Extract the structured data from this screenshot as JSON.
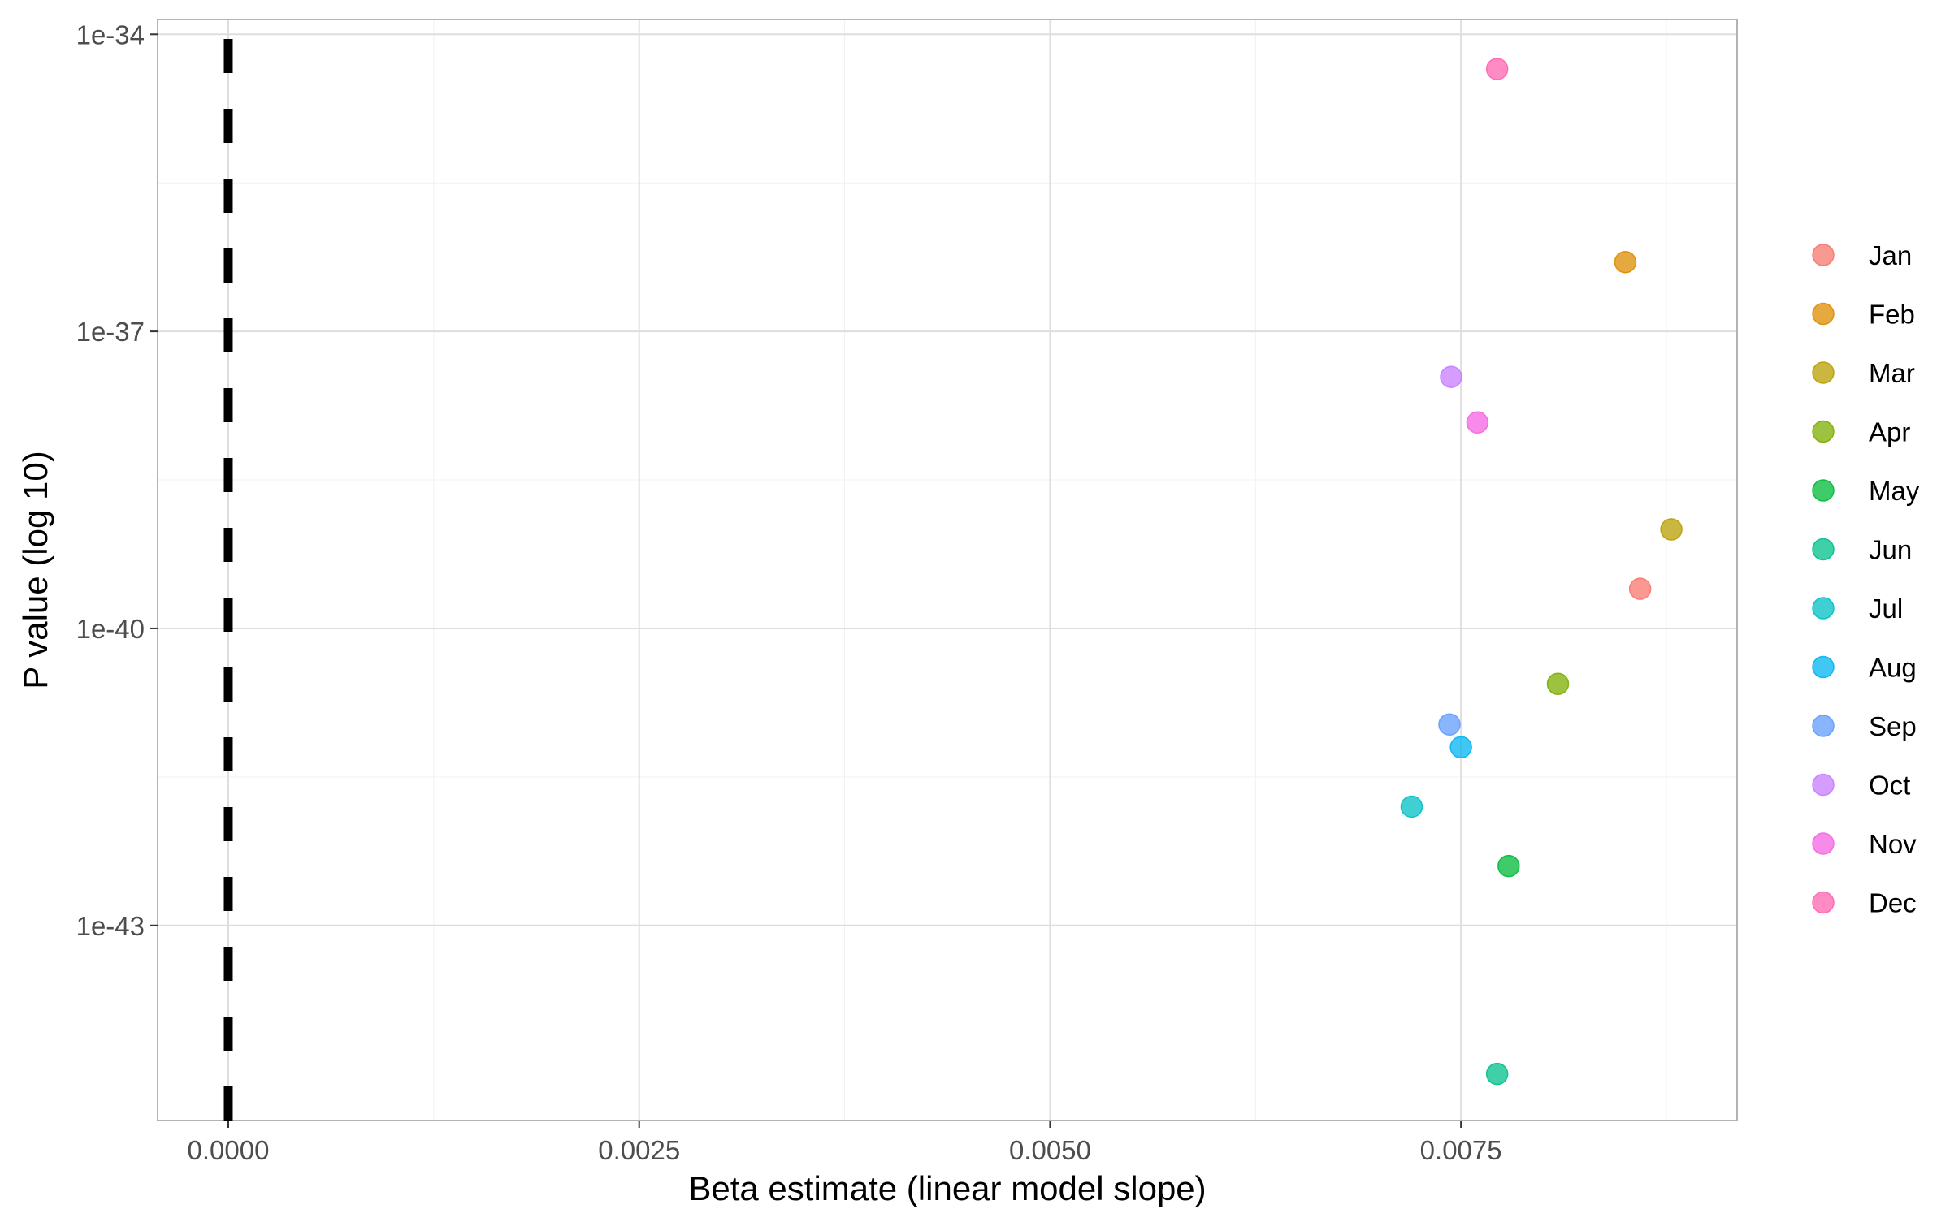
{
  "chart_data": {
    "type": "scatter",
    "title": "",
    "xlabel": "Beta estimate (linear model slope)",
    "ylabel": "P value (log 10)",
    "x_ticks": [
      0.0,
      0.0025,
      0.005,
      0.0075
    ],
    "x_tick_labels": [
      "0.0000",
      "0.0025",
      "0.0050",
      "0.0075"
    ],
    "y_scale": "log10",
    "y_ticks_log10": [
      -34,
      -37,
      -40,
      -43
    ],
    "y_tick_labels": [
      "1e-34",
      "1e-37",
      "1e-40",
      "1e-43"
    ],
    "xlim": [
      -0.00043,
      0.00918
    ],
    "ylim_log10": [
      -44.97,
      -33.85
    ],
    "grid": true,
    "reference_line": {
      "x": 0.0,
      "style": "dashed",
      "color": "#000000"
    },
    "legend_position": "right",
    "series": [
      {
        "name": "Jan",
        "color": "#F8766D",
        "x": 0.00859,
        "p": "2.5e-40",
        "log10_p": -39.6
      },
      {
        "name": "Feb",
        "color": "#DE8C00",
        "x": 0.0085,
        "p": "5.0e-37",
        "log10_p": -36.3
      },
      {
        "name": "Mar",
        "color": "#B79F00",
        "x": 0.00878,
        "p": "1.0e-39",
        "log10_p": -39.0
      },
      {
        "name": "Apr",
        "color": "#7CAE00",
        "x": 0.00809,
        "p": "2.8e-41",
        "log10_p": -40.56
      },
      {
        "name": "May",
        "color": "#00BA38",
        "x": 0.00779,
        "p": "4.0e-43",
        "log10_p": -42.4
      },
      {
        "name": "Jun",
        "color": "#00C08B",
        "x": 0.00772,
        "p": "3.2e-45",
        "log10_p": -44.5
      },
      {
        "name": "Jul",
        "color": "#00BFC4",
        "x": 0.0072,
        "p": "1.6e-42",
        "log10_p": -41.8
      },
      {
        "name": "Aug",
        "color": "#00B4F0",
        "x": 0.0075,
        "p": "6.3e-42",
        "log10_p": -41.2
      },
      {
        "name": "Sep",
        "color": "#619CFF",
        "x": 0.00743,
        "p": "1.1e-41",
        "log10_p": -40.97
      },
      {
        "name": "Oct",
        "color": "#C77CFF",
        "x": 0.00744,
        "p": "3.5e-38",
        "log10_p": -37.46
      },
      {
        "name": "Nov",
        "color": "#F564E3",
        "x": 0.0076,
        "p": "1.2e-38",
        "log10_p": -37.92
      },
      {
        "name": "Dec",
        "color": "#FF64B0",
        "x": 0.00772,
        "p": "4.5e-35",
        "log10_p": -34.35
      }
    ]
  }
}
